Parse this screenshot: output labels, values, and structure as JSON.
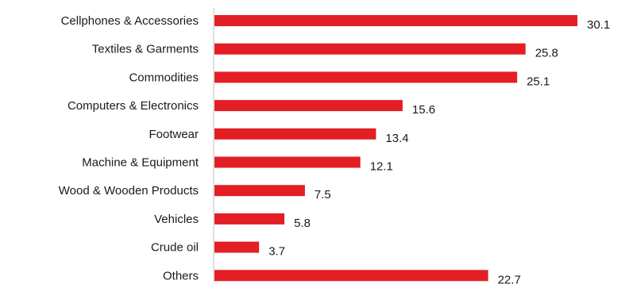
{
  "chart_data": {
    "type": "bar",
    "orientation": "horizontal",
    "categories": [
      "Cellphones & Accessories",
      "Textiles & Garments",
      "Commodities",
      "Computers & Electronics",
      "Footwear",
      "Machine & Equipment",
      "Wood & Wooden Products",
      "Vehicles",
      "Crude oil",
      "Others"
    ],
    "values": [
      30.1,
      25.8,
      25.1,
      15.6,
      13.4,
      12.1,
      7.5,
      5.8,
      3.7,
      22.7
    ],
    "value_labels": [
      "30.1",
      "25.8",
      "25.1",
      "15.6",
      "13.4",
      "12.1",
      "7.5",
      "5.8",
      "3.7",
      "22.7"
    ],
    "xlim": [
      0,
      30.1
    ],
    "grid": false,
    "legend": "none",
    "bar_color": "#e31e24"
  }
}
